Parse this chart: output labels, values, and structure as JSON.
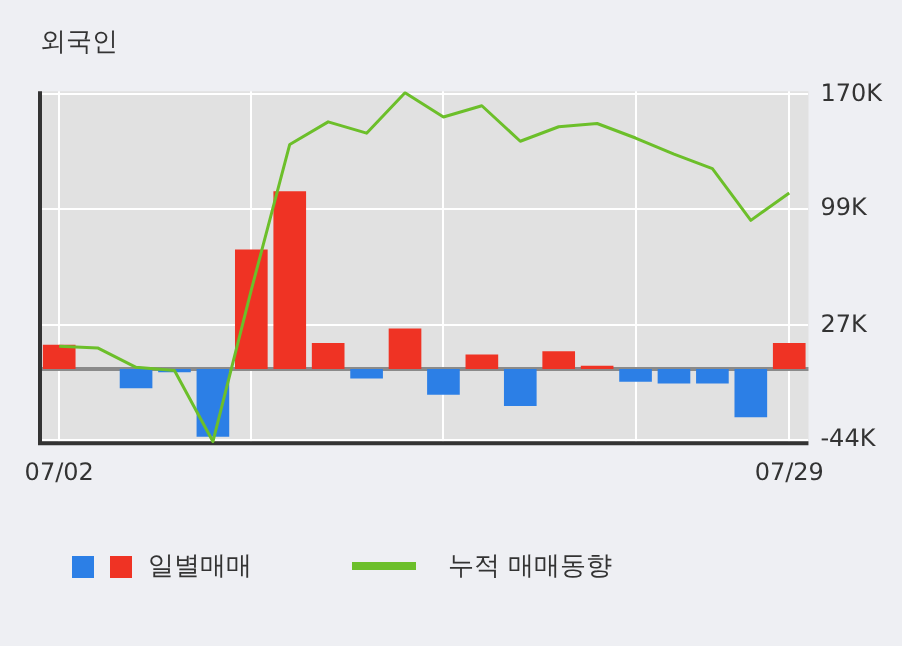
{
  "chart_data": {
    "type": "bar",
    "title": "외국인",
    "categories": [
      "07/02",
      null,
      null,
      null,
      null,
      null,
      null,
      null,
      null,
      null,
      null,
      null,
      null,
      null,
      null,
      null,
      null,
      null,
      null,
      "07/29"
    ],
    "series": [
      {
        "name": "일별매매",
        "values": [
          15,
          0,
          -12,
          -2,
          -42,
          74,
          110,
          16,
          -6,
          25,
          -16,
          9,
          -23,
          11,
          2,
          -8,
          -9,
          -9,
          -30,
          16
        ],
        "colors": [
          "#ef3324",
          "#ef3324",
          "#2c7fe6",
          "#2c7fe6",
          "#2c7fe6",
          "#ef3324",
          "#ef3324",
          "#ef3324",
          "#2c7fe6",
          "#ef3324",
          "#2c7fe6",
          "#ef3324",
          "#2c7fe6",
          "#ef3324",
          "#ef3324",
          "#2c7fe6",
          "#2c7fe6",
          "#2c7fe6",
          "#2c7fe6",
          "#ef3324"
        ]
      },
      {
        "name": "누적 매매동향",
        "type": "line",
        "color": "#6cbf2a",
        "values": [
          14,
          13,
          1,
          -1,
          -45,
          49,
          139,
          153,
          146,
          171,
          156,
          163,
          141,
          150,
          152,
          143,
          133,
          124,
          92,
          109
        ]
      }
    ],
    "ylim": [
      -46,
      172
    ],
    "yticks": [
      {
        "value": 170,
        "label": "170K"
      },
      {
        "value": 99,
        "label": "99K"
      },
      {
        "value": 27,
        "label": "27K"
      },
      {
        "value": -44,
        "label": "-44K"
      }
    ],
    "ref_lines": [
      {
        "axis": "y",
        "value": 0,
        "color": "#8a8a8a"
      }
    ],
    "grid": true,
    "legend": "bottom",
    "marker": "none",
    "line_style": "solid"
  }
}
